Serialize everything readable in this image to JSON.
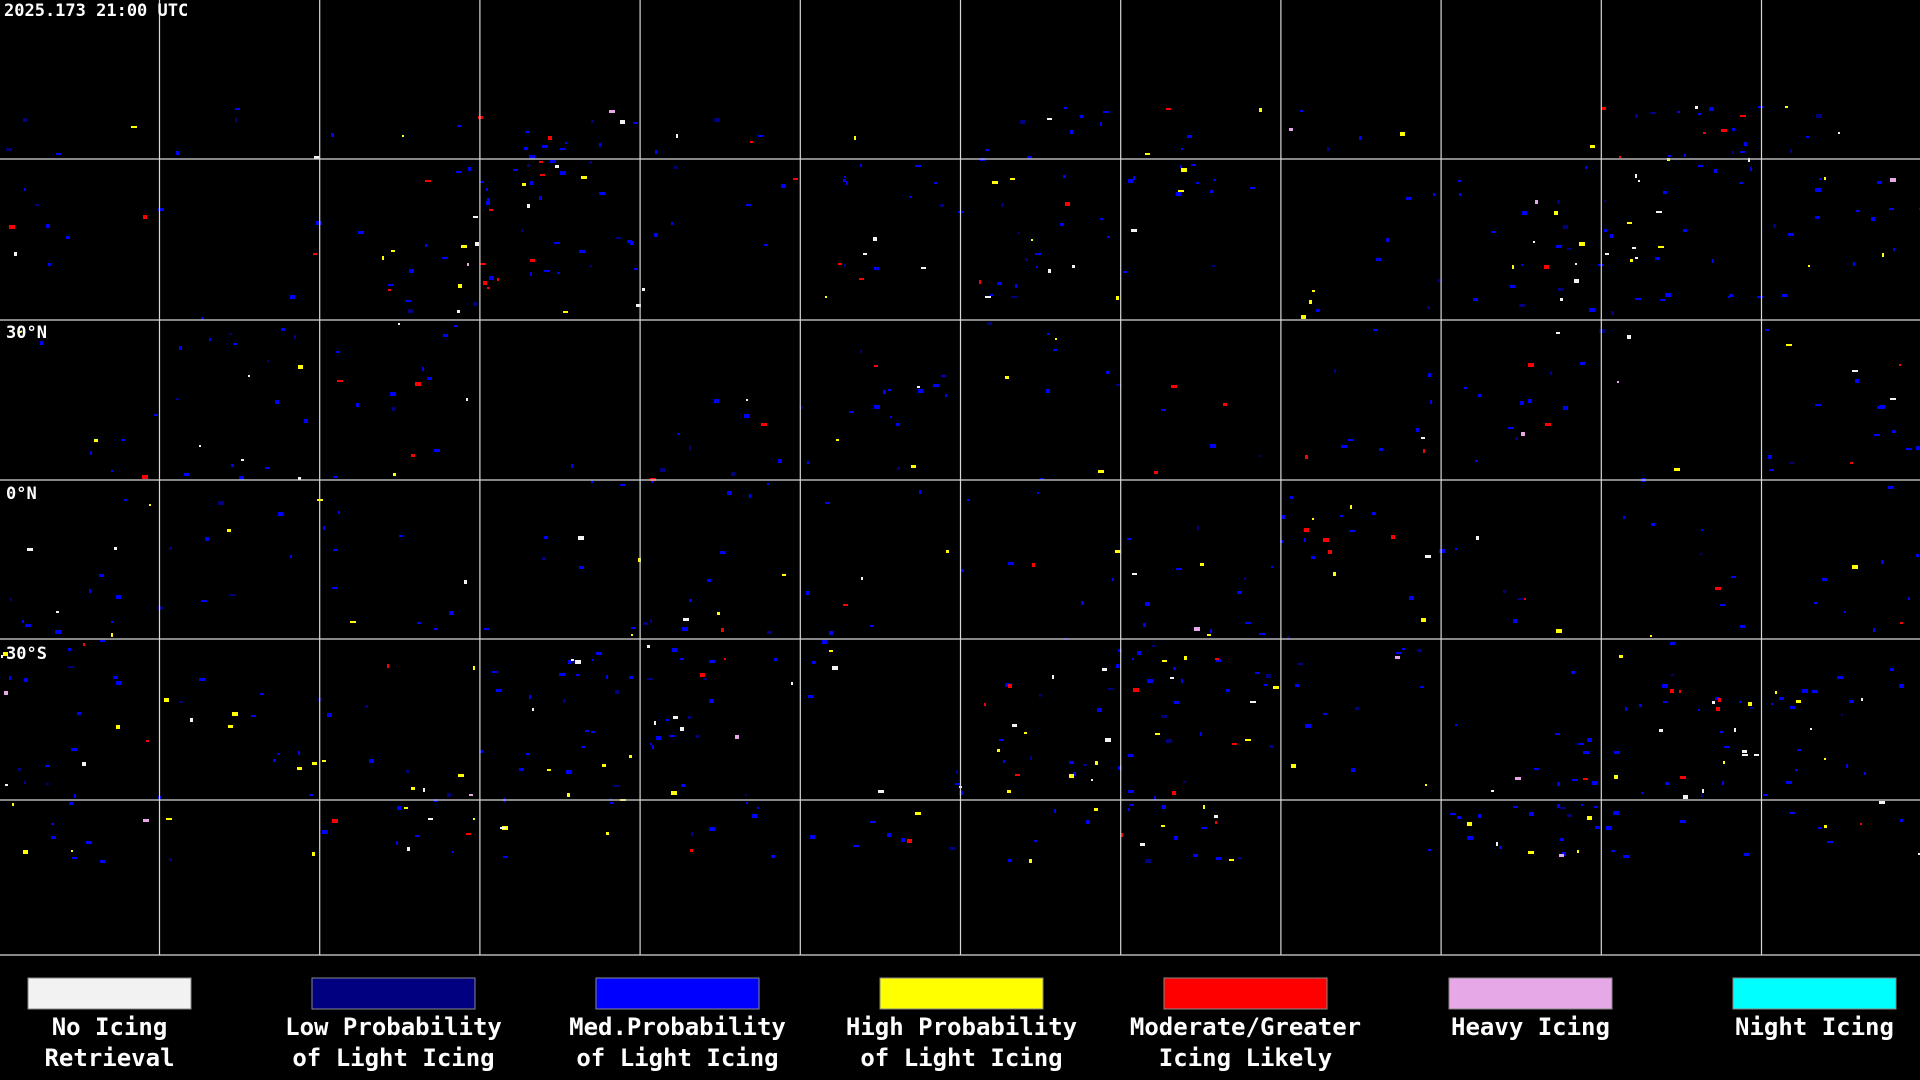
{
  "header": {
    "title": "2025.173 21:00 UTC"
  },
  "map": {
    "latitude_labels": [
      "30°N",
      "0°N",
      "30°S"
    ]
  },
  "legend": {
    "items": [
      {
        "color": "#f2f2f2",
        "lines": [
          "No Icing",
          "Retrieval"
        ]
      },
      {
        "color": "#000080",
        "lines": [
          "Low Probability",
          "of Light Icing"
        ]
      },
      {
        "color": "#0000ff",
        "lines": [
          "Med.Probability",
          "of Light Icing"
        ]
      },
      {
        "color": "#ffff00",
        "lines": [
          "High Probability",
          "of Light Icing"
        ]
      },
      {
        "color": "#ff0000",
        "lines": [
          "Moderate/Greater",
          "Icing Likely"
        ]
      },
      {
        "color": "#e6a8e6",
        "lines": [
          "Heavy Icing"
        ]
      },
      {
        "color": "#00ffff",
        "lines": [
          "Night Icing"
        ]
      }
    ]
  }
}
